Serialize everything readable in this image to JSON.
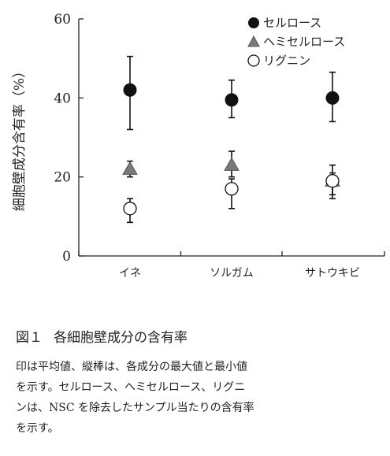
{
  "chart_data": {
    "type": "scatter",
    "categories": [
      "イネ",
      "ソルガム",
      "サトウキビ"
    ],
    "ylabel": "細胞壁成分含有率（%）",
    "ylim": [
      0,
      60
    ],
    "yticks": [
      "0",
      "20",
      "40",
      "60"
    ],
    "legend_position": "top-right",
    "series": [
      {
        "name": "セルロース",
        "marker": "circle-filled",
        "values": [
          42,
          39.5,
          40
        ],
        "min": [
          32,
          35,
          34
        ],
        "max": [
          50.5,
          44.5,
          46.5
        ]
      },
      {
        "name": "ヘミセルロース",
        "marker": "triangle-filled",
        "values": [
          22,
          23,
          19
        ],
        "min": [
          20,
          20,
          15.5
        ],
        "max": [
          24,
          26.5,
          21
        ]
      },
      {
        "name": "リグニン",
        "marker": "circle-open",
        "values": [
          12,
          17,
          19
        ],
        "min": [
          8.5,
          12,
          14.5
        ],
        "max": [
          14.5,
          19.5,
          23
        ]
      }
    ],
    "colors": {
      "filled": "#111111",
      "triangle": "#7a7a7a",
      "open_fill": "#ffffff",
      "axis": "#222222"
    }
  },
  "caption": {
    "fig_number": "図１",
    "fig_title": "各細胞壁成分の含有率",
    "lines": [
      "印は平均値、縦棒は、各成分の最大値と最小値",
      "を示す。セルロース、ヘミセルロース、リグニ",
      "ンは、NSC を除去したサンプル当たりの含有率",
      "を示す。"
    ]
  }
}
